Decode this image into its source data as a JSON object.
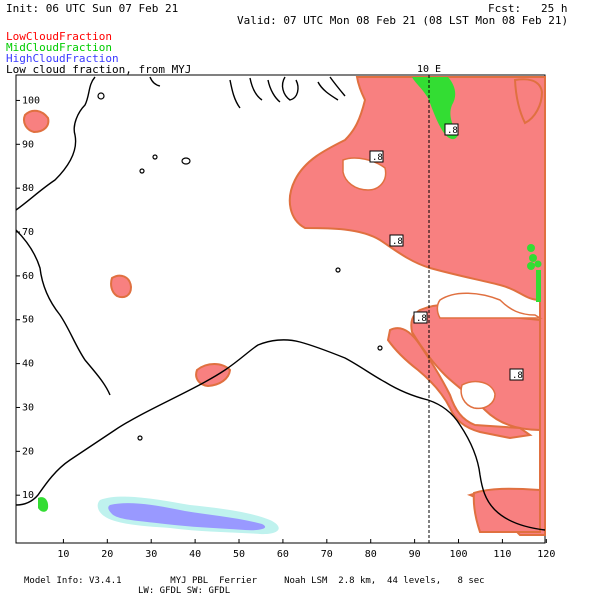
{
  "header": {
    "init": "Init: 06 UTC Sun 07 Feb 21",
    "fcst": "Fcst:   25 h",
    "valid": "Valid: 07 UTC Mon 08 Feb 21 (08 LST Mon 08 Feb 21)"
  },
  "legend": {
    "low": "LowCloudFraction",
    "mid": "MidCloudFraction",
    "high": "HighCloudFraction",
    "note": "Low cloud fraction, from MYJ",
    "colors": {
      "low": "#ff0000",
      "mid": "#00cc00",
      "high": "#3a3aff"
    }
  },
  "map": {
    "meridian_label": "10 E",
    "x_ticks": [
      "10",
      "20",
      "30",
      "40",
      "50",
      "60",
      "70",
      "80",
      "90",
      "100",
      "110",
      "120"
    ],
    "y_ticks": [
      "10",
      "20",
      "30",
      "40",
      "50",
      "60",
      "70",
      "80",
      "90",
      "100"
    ],
    "contour_labels": [
      ".8",
      ".8",
      ".8",
      ".8",
      ".8"
    ],
    "colors": {
      "low_fill": "#f88080",
      "low_edge": "#e07040",
      "mid_fill": "#33dd33",
      "high_fill": "#9999ff",
      "high_edge": "#bff2ee"
    }
  },
  "footer": {
    "line1": "Model Info: V3.4.1         MYJ PBL  Ferrier     Noah LSM  2.8 km,  44 levels,   8 sec",
    "line2": "LW: GFDL SW: GFDL"
  }
}
